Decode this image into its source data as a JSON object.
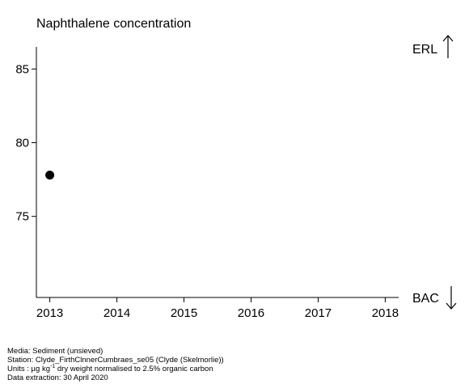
{
  "chart_data": {
    "type": "scatter",
    "title": "Naphthalene concentration",
    "xlabel": "",
    "ylabel": "",
    "xlim": [
      2012.8,
      2018.2
    ],
    "ylim": [
      69.5,
      86.5
    ],
    "x_ticks": [
      "2013",
      "2014",
      "2015",
      "2016",
      "2017",
      "2018"
    ],
    "y_ticks": [
      "75",
      "80",
      "85"
    ],
    "grid": false,
    "series": [
      {
        "x": [
          2013
        ],
        "y": [
          77.8
        ]
      }
    ],
    "reference_lines": {
      "top": "ERL",
      "bottom": "BAC"
    }
  },
  "footer": {
    "media": "Media: Sediment (unsieved)",
    "station": "Station: Clyde_FirthClnnerCumbraes_se05 (Clyde (Skelmorlie))",
    "units_prefix": "Units : µg kg",
    "units_sup": "-1",
    "units_suffix": " dry weight normalised to 2.5% organic carbon",
    "extraction": "Data extraction: 30 April 2020"
  }
}
